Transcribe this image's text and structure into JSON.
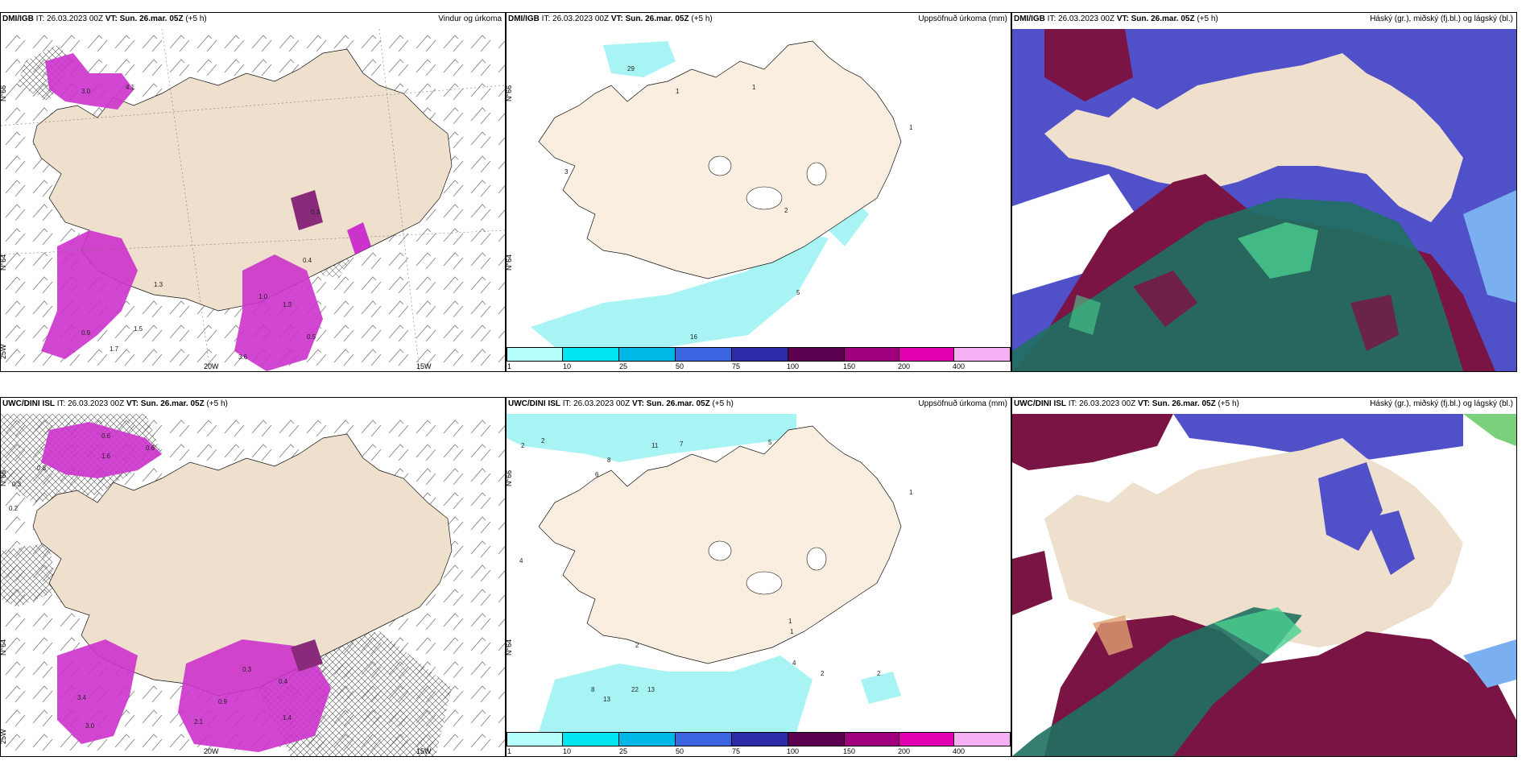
{
  "panels": [
    {
      "id": "p1",
      "model": "DMI/IGB",
      "it_label": "IT:",
      "it": "26.03.2023 00Z",
      "vt_label": "VT:",
      "vt": "Sun. 26.mar. 05Z",
      "offset": "(+5 h)",
      "title": "Vindur og úrkoma",
      "type": "wind",
      "lat_labels": [
        "N°66",
        "N°64"
      ],
      "lon_labels": [
        "20W",
        "15W",
        "25W"
      ],
      "values": [
        "3.0",
        "4.1",
        "0.3",
        "0.4",
        "1.3",
        "1.0",
        "1.3",
        "1.5",
        "0.5",
        "3.6",
        "0.9",
        "1.7"
      ]
    },
    {
      "id": "p2",
      "model": "DMI/IGB",
      "it_label": "IT:",
      "it": "26.03.2023 00Z",
      "vt_label": "VT:",
      "vt": "Sun. 26.mar. 05Z",
      "offset": "(+5 h)",
      "title": "Uppsöfnuð úrkoma (mm)",
      "type": "precip",
      "lat_labels": [
        "N°66",
        "N°64"
      ],
      "values": [
        "29",
        "1",
        "1",
        "1",
        "3",
        "2",
        "5",
        "16"
      ]
    },
    {
      "id": "p3",
      "model": "DMI/IGB",
      "it_label": "IT:",
      "it": "26.03.2023 00Z",
      "vt_label": "VT:",
      "vt": "Sun. 26.mar. 05Z",
      "offset": "(+5 h)",
      "title": "Háský (gr.), miðský (fj.bl.) og lágský (bl.)",
      "type": "cloud"
    },
    {
      "id": "p4",
      "model": "UWC/DINI ISL",
      "it_label": "IT:",
      "it": "26.03.2023 00Z",
      "vt_label": "VT:",
      "vt": "Sun. 26.mar. 05Z",
      "offset": "(+5 h)",
      "title": "",
      "type": "wind",
      "lat_labels": [
        "N°66",
        "N°64"
      ],
      "lon_labels": [
        "20W",
        "15W",
        "25W"
      ],
      "values": [
        "0.6",
        "1.6",
        "0.6",
        "0.3",
        "0.8",
        "0.2",
        "3.0",
        "3.4",
        "2.1",
        "0.4",
        "1.4",
        "0.3",
        "0.9"
      ]
    },
    {
      "id": "p5",
      "model": "UWC/DINI ISL",
      "it_label": "IT:",
      "it": "26.03.2023 00Z",
      "vt_label": "VT:",
      "vt": "Sun. 26.mar. 05Z",
      "offset": "(+5 h)",
      "title": "Uppsöfnuð úrkoma (mm)",
      "type": "precip",
      "lat_labels": [
        "N°66",
        "N°64"
      ],
      "values": [
        "2",
        "2",
        "11",
        "7",
        "5",
        "8",
        "6",
        "1",
        "4",
        "1",
        "1",
        "2",
        "4",
        "8",
        "13",
        "22",
        "13",
        "2",
        "2"
      ]
    },
    {
      "id": "p6",
      "model": "UWC/DINI ISL",
      "it_label": "IT:",
      "it": "26.03.2023 00Z",
      "vt_label": "VT:",
      "vt": "Sun. 26.mar. 05Z",
      "offset": "(+5 h)",
      "title": "Háský (gr.), miðský (fj.bl.) og lágský (bl.)",
      "type": "cloud"
    }
  ],
  "colorbar": {
    "ticks": [
      "1",
      "10",
      "25",
      "50",
      "75",
      "100",
      "150",
      "200",
      "400"
    ],
    "colors": [
      "#b5ffff",
      "#00e5ef",
      "#00b8e8",
      "#3a64e0",
      "#2c2ca8",
      "#5c0050",
      "#a0007c",
      "#e000b0",
      "#f6b0f4"
    ]
  },
  "colors": {
    "land": "#eee0cc",
    "precip_light": "#a8f4f4",
    "wind_precip": "#cc33cc",
    "cloud_high": "#1f7060",
    "cloud_mid": "#7a1445",
    "cloud_low": "#5050c8"
  }
}
